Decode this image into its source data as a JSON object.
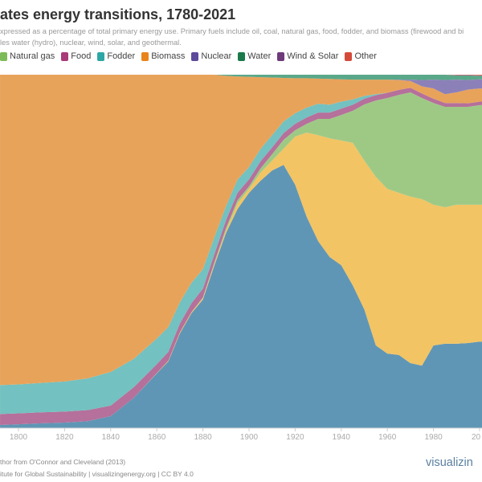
{
  "header": {
    "title": "ates energy transitions, 1780-2021",
    "subtitle_line1": "xpressed as a percentage of total primary energy use. Primary fuels include oil, coal, natural gas, food, fodder, and biomass (firewood and bi",
    "subtitle_line2": "les water (hydro), nuclear, wind, solar, and geothermal."
  },
  "legend": [
    {
      "label": "Natural gas",
      "color": "#7dbb5a"
    },
    {
      "label": "Food",
      "color": "#a83a7a"
    },
    {
      "label": "Fodder",
      "color": "#2fa6a6"
    },
    {
      "label": "Biomass",
      "color": "#e8841a"
    },
    {
      "label": "Nuclear",
      "color": "#5e4a9a"
    },
    {
      "label": "Water",
      "color": "#1a7a4a"
    },
    {
      "label": "Wind & Solar",
      "color": "#6e3a7a"
    },
    {
      "label": "Other",
      "color": "#d44a3a"
    }
  ],
  "chart_data": {
    "type": "area",
    "stacked": true,
    "title": "ates energy transitions, 1780-2021",
    "xlabel": "",
    "ylabel": "",
    "ylim": [
      0,
      100
    ],
    "x_ticks": [
      "1800",
      "1820",
      "1840",
      "1860",
      "1880",
      "1900",
      "1920",
      "1940",
      "1960",
      "1980",
      "20"
    ],
    "grid": false,
    "legend_position": "top",
    "x": [
      1792,
      1800,
      1810,
      1820,
      1830,
      1840,
      1850,
      1860,
      1865,
      1870,
      1875,
      1880,
      1885,
      1890,
      1895,
      1900,
      1905,
      1910,
      1915,
      1920,
      1925,
      1930,
      1935,
      1940,
      1945,
      1950,
      1955,
      1960,
      1965,
      1970,
      1975,
      1980,
      1985,
      1990,
      1995,
      2000,
      2005
    ],
    "series": [
      {
        "name": "",
        "color": "#6096b5",
        "values": [
          0.9,
          1.1,
          1.4,
          1.6,
          2.0,
          3.4,
          8.6,
          15.5,
          18.9,
          26.8,
          32.5,
          36.4,
          46.1,
          55.2,
          62.0,
          66.6,
          70.0,
          72.9,
          74.5,
          68.9,
          59.8,
          52.9,
          48.4,
          46.1,
          40.4,
          33.6,
          23.4,
          21.1,
          20.7,
          18.4,
          17.7,
          23.4,
          23.9,
          23.9,
          24.1,
          24.5,
          24.5
        ]
      },
      {
        "name": "",
        "color": "#f2c464",
        "values": [
          0,
          0,
          0,
          0,
          0,
          0,
          0,
          0.1,
          0.2,
          0.3,
          0.3,
          0.4,
          0.5,
          0.7,
          1.6,
          1.1,
          2.3,
          2.8,
          4.6,
          13.6,
          23.8,
          30.0,
          33.6,
          35.3,
          40.3,
          42.1,
          47.7,
          46.6,
          45.9,
          47.1,
          47.1,
          39.8,
          38.6,
          39.3,
          39.1,
          38.7,
          38.7
        ]
      },
      {
        "name": "Natural gas",
        "color": "#9ec985",
        "values": [
          0,
          0,
          0,
          0,
          0,
          0,
          0,
          0,
          0,
          0,
          0,
          0.2,
          0.4,
          0.7,
          0.9,
          0.7,
          1.2,
          1.8,
          2.5,
          1.8,
          2.5,
          4.6,
          5.5,
          7.2,
          9.1,
          15.9,
          21.6,
          25.7,
          27.7,
          29.5,
          28.6,
          28.8,
          28.4,
          27.7,
          27.7,
          28.2,
          28.2
        ]
      },
      {
        "name": "Food",
        "color": "#b5709b",
        "values": [
          3.1,
          3.1,
          3.1,
          3.1,
          3.1,
          3.0,
          3.0,
          2.5,
          2.5,
          2.5,
          2.5,
          2.5,
          2.3,
          2.2,
          2.1,
          2.0,
          2.0,
          1.9,
          1.9,
          1.8,
          1.8,
          1.8,
          1.8,
          1.8,
          1.7,
          1.6,
          1.5,
          1.5,
          1.4,
          1.3,
          1.3,
          1.2,
          1.1,
          1.1,
          1.0,
          1.0,
          1.0
        ]
      },
      {
        "name": "Fodder",
        "color": "#73c1c0",
        "values": [
          8.2,
          8.2,
          8.3,
          8.5,
          9.0,
          9.5,
          8.0,
          7.3,
          7.0,
          6.0,
          5.8,
          5.5,
          4.8,
          4.0,
          3.7,
          3.5,
          3.5,
          3.5,
          3.3,
          3.0,
          2.8,
          2.5,
          2.2,
          2.0,
          1.5,
          0.8,
          0.3,
          0,
          0,
          0,
          0,
          0,
          0,
          0,
          0,
          0,
          0
        ]
      },
      {
        "name": "Biomass",
        "color": "#e8a35a",
        "values": "remainder"
      },
      {
        "name": "Nuclear",
        "color": "#8c80b8",
        "values": [
          0,
          0,
          0,
          0,
          0,
          0,
          0,
          0,
          0,
          0,
          0,
          0,
          0,
          0,
          0,
          0,
          0,
          0,
          0,
          0,
          0,
          0,
          0,
          0,
          0,
          0,
          0,
          0,
          0.1,
          0.4,
          1.8,
          2.5,
          4.0,
          3.6,
          2.7,
          2.6,
          2.6
        ]
      },
      {
        "name": "Water",
        "color": "#5aa88a",
        "values": [
          0,
          0,
          0,
          0,
          0,
          0,
          0,
          0,
          0,
          0,
          0,
          0,
          0,
          0.3,
          0.5,
          0.6,
          0.7,
          0.8,
          0.9,
          1.0,
          1.0,
          1.1,
          1.2,
          1.3,
          1.4,
          1.4,
          1.4,
          1.4,
          1.4,
          1.4,
          1.5,
          1.4,
          1.5,
          1.2,
          1.3,
          1.0,
          1.0
        ]
      },
      {
        "name": "Wind & Solar",
        "color": "#8a5a9a",
        "values": [
          0,
          0,
          0,
          0,
          0,
          0,
          0,
          0,
          0,
          0,
          0,
          0,
          0,
          0,
          0,
          0,
          0,
          0,
          0,
          0,
          0,
          0,
          0,
          0,
          0,
          0,
          0,
          0,
          0,
          0,
          0,
          0,
          0,
          0.1,
          0.1,
          0.1,
          0.2
        ]
      },
      {
        "name": "Other",
        "color": "#d9684f",
        "values": [
          0,
          0,
          0,
          0,
          0,
          0,
          0,
          0,
          0,
          0,
          0,
          0,
          0,
          0,
          0,
          0,
          0,
          0,
          0,
          0,
          0,
          0,
          0,
          0,
          0,
          0,
          0,
          0,
          0,
          0,
          0,
          0,
          0,
          0.1,
          0.1,
          0.2,
          0.2
        ]
      }
    ]
  },
  "footer": {
    "line1": "thor from O'Connor and Cleveland (2013)",
    "line2": "itute for Global Sustainability | visualizingenergy.org | CC BY 4.0",
    "logo": "visualizin"
  }
}
